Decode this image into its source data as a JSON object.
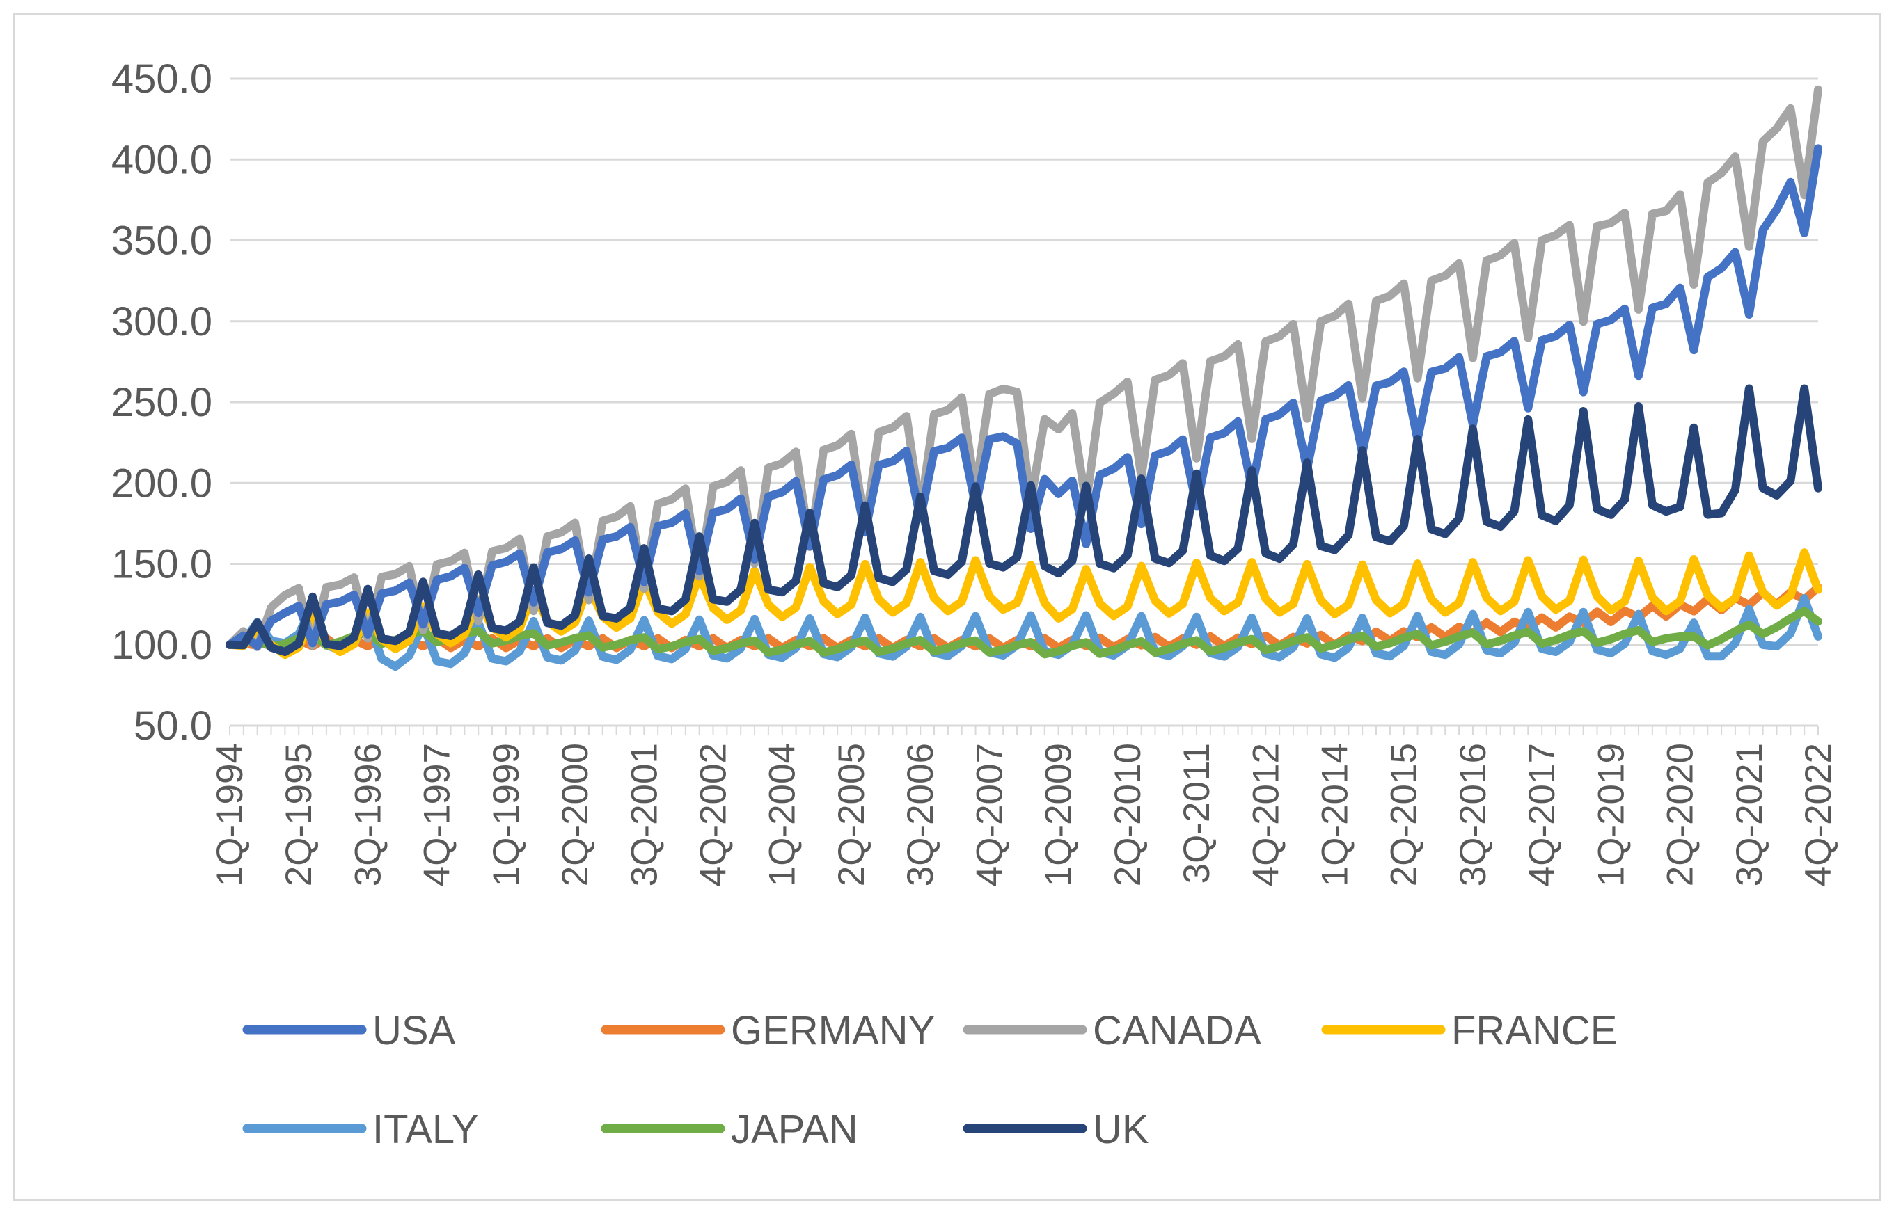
{
  "chart_data": {
    "type": "line",
    "title": "",
    "xlabel": "",
    "ylabel": "",
    "ylim": [
      50,
      450
    ],
    "yticks": [
      "50.0",
      "100.0",
      "150.0",
      "200.0",
      "250.0",
      "300.0",
      "350.0",
      "400.0",
      "450.0"
    ],
    "ytick_values": [
      50,
      100,
      150,
      200,
      250,
      300,
      350,
      400,
      450
    ],
    "n_points": 116,
    "start_quarter": "1Q-1994",
    "xtick_labels": [
      "1Q-1994",
      "2Q-1995",
      "3Q-1996",
      "4Q-1997",
      "1Q-1999",
      "2Q-2000",
      "3Q-2001",
      "4Q-2002",
      "1Q-2004",
      "2Q-2005",
      "3Q-2006",
      "4Q-2007",
      "1Q-2009",
      "2Q-2010",
      "3Q-2011",
      "4Q-2012",
      "1Q-2014",
      "2Q-2015",
      "3Q-2016",
      "4Q-2017",
      "1Q-2019",
      "2Q-2020",
      "3Q-2021",
      "4Q-2022"
    ],
    "xtick_indices": [
      0,
      5,
      10,
      15,
      20,
      25,
      30,
      35,
      40,
      45,
      50,
      55,
      60,
      65,
      70,
      75,
      80,
      85,
      90,
      95,
      100,
      105,
      110,
      115
    ],
    "grid": true,
    "legend_position": "bottom",
    "series": [
      {
        "name": "USA",
        "color": "#4472C4",
        "knots": [
          [
            0,
            100
          ],
          [
            4,
            115
          ],
          [
            12,
            128
          ],
          [
            20,
            145
          ],
          [
            28,
            160
          ],
          [
            36,
            176
          ],
          [
            44,
            196
          ],
          [
            52,
            213
          ],
          [
            56,
            220
          ],
          [
            60,
            185
          ],
          [
            64,
            200
          ],
          [
            72,
            222
          ],
          [
            80,
            245
          ],
          [
            88,
            262
          ],
          [
            96,
            282
          ],
          [
            104,
            302
          ],
          [
            110,
            335
          ],
          [
            115,
            398
          ]
        ],
        "seasonal": [
          4,
          6,
          -14,
          4
        ]
      },
      {
        "name": "GERMANY",
        "color": "#ED7D31",
        "knots": [
          [
            0,
            100
          ],
          [
            20,
            100
          ],
          [
            60,
            100
          ],
          [
            80,
            102
          ],
          [
            88,
            107
          ],
          [
            96,
            113
          ],
          [
            104,
            120
          ],
          [
            110,
            126
          ],
          [
            115,
            130
          ]
        ],
        "seasonal": [
          -2,
          3,
          -1,
          4
        ]
      },
      {
        "name": "CANADA",
        "color": "#A5A5A5",
        "knots": [
          [
            0,
            100
          ],
          [
            4,
            123
          ],
          [
            12,
            135
          ],
          [
            20,
            150
          ],
          [
            28,
            168
          ],
          [
            36,
            188
          ],
          [
            44,
            210
          ],
          [
            52,
            232
          ],
          [
            56,
            245
          ],
          [
            60,
            220
          ],
          [
            64,
            242
          ],
          [
            72,
            265
          ],
          [
            80,
            290
          ],
          [
            88,
            315
          ],
          [
            96,
            340
          ],
          [
            104,
            355
          ],
          [
            110,
            390
          ],
          [
            115,
            430
          ]
        ],
        "seasonal": [
          6,
          8,
          -20,
          6
        ]
      },
      {
        "name": "FRANCE",
        "color": "#FFC000",
        "knots": [
          [
            0,
            100
          ],
          [
            12,
            106
          ],
          [
            24,
            118
          ],
          [
            36,
            126
          ],
          [
            44,
            130
          ],
          [
            56,
            133
          ],
          [
            60,
            127
          ],
          [
            72,
            132
          ],
          [
            80,
            130
          ],
          [
            88,
            131
          ],
          [
            96,
            133
          ],
          [
            104,
            132
          ],
          [
            110,
            135
          ],
          [
            115,
            137
          ]
        ],
        "seasonal": [
          -8,
          -4,
          14,
          -2
        ]
      },
      {
        "name": "ITALY",
        "color": "#5B9BD5",
        "knots": [
          [
            0,
            100
          ],
          [
            4,
            110
          ],
          [
            8,
            105
          ],
          [
            12,
            95
          ],
          [
            20,
            98
          ],
          [
            40,
            100
          ],
          [
            60,
            102
          ],
          [
            80,
            100
          ],
          [
            96,
            104
          ],
          [
            104,
            102
          ],
          [
            106,
            97
          ],
          [
            110,
            105
          ],
          [
            115,
            112
          ]
        ],
        "seasonal": [
          -8,
          -2,
          16,
          -6
        ]
      },
      {
        "name": "JAPAN",
        "color": "#70AD47",
        "knots": [
          [
            0,
            100
          ],
          [
            8,
            103
          ],
          [
            16,
            105
          ],
          [
            28,
            101
          ],
          [
            40,
            98
          ],
          [
            52,
            99
          ],
          [
            60,
            97
          ],
          [
            72,
            99
          ],
          [
            80,
            101
          ],
          [
            88,
            103
          ],
          [
            96,
            104
          ],
          [
            104,
            105
          ],
          [
            106,
            101
          ],
          [
            110,
            108
          ],
          [
            115,
            118
          ]
        ],
        "seasonal": [
          -1,
          2,
          4,
          -3
        ]
      },
      {
        "name": "UK",
        "color": "#264478",
        "knots": [
          [
            0,
            100
          ],
          [
            8,
            108
          ],
          [
            16,
            115
          ],
          [
            24,
            122
          ],
          [
            32,
            132
          ],
          [
            40,
            145
          ],
          [
            48,
            152
          ],
          [
            56,
            162
          ],
          [
            60,
            158
          ],
          [
            68,
            165
          ],
          [
            76,
            168
          ],
          [
            84,
            180
          ],
          [
            92,
            190
          ],
          [
            100,
            198
          ],
          [
            104,
            200
          ],
          [
            106,
            188
          ],
          [
            110,
            210
          ],
          [
            115,
            210
          ]
        ],
        "seasonal": [
          -8,
          -4,
          22,
          -6
        ]
      }
    ]
  }
}
